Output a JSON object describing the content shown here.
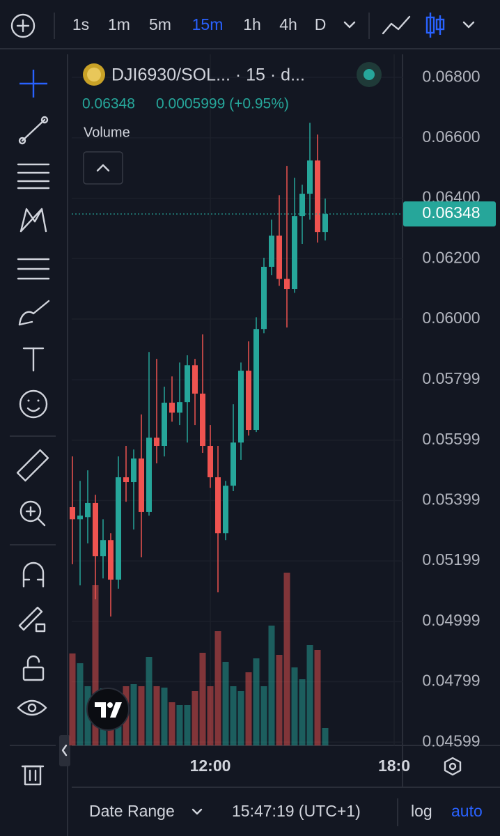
{
  "toolbar": {
    "intervals": [
      "1s",
      "1m",
      "5m",
      "15m",
      "1h",
      "4h",
      "D"
    ],
    "active_interval": 3
  },
  "chart_data": {
    "type": "candlestick",
    "title": "DJI6930/SOL... · 15 · d...",
    "last_price": 0.06348,
    "change": "0.0005999 (+0.95%)",
    "volume_label": "Volume",
    "up_color": "#26a69a",
    "down_color": "#ef5350",
    "open": [
      0.05377,
      0.05337,
      0.05344,
      0.05391,
      0.05215,
      0.05268,
      0.05137,
      0.05476,
      0.0546,
      0.05538,
      0.05361,
      0.05607,
      0.0558,
      0.05723,
      0.0569,
      0.05725,
      0.05847,
      0.05753,
      0.0558,
      0.05476,
      0.05291,
      0.05448,
      0.05591,
      0.05829,
      0.05633,
      0.05967,
      0.06173,
      0.06276,
      0.06133,
      0.06099,
      0.06341,
      0.06415,
      0.06525,
      0.06288
    ],
    "high": [
      0.05545,
      0.05464,
      0.05499,
      0.05418,
      0.05337,
      0.05291,
      0.05545,
      0.0558,
      0.05568,
      0.05684,
      0.05891,
      0.05868,
      0.05776,
      0.0581,
      0.05856,
      0.0588,
      0.05868,
      0.05949,
      0.05649,
      0.0558,
      0.05464,
      0.05718,
      0.05856,
      0.05926,
      0.06006,
      0.06203,
      0.06329,
      0.0641,
      0.06507,
      0.06468,
      0.06445,
      0.0665,
      0.06611,
      0.06399
    ],
    "low": [
      0.05188,
      0.05118,
      0.05257,
      0.05072,
      0.05141,
      0.05015,
      0.05107,
      0.05395,
      0.05303,
      0.05211,
      0.05349,
      0.05522,
      0.05545,
      0.0566,
      0.05649,
      0.05591,
      0.05649,
      0.05557,
      0.05441,
      0.05095,
      0.05268,
      0.0543,
      0.05534,
      0.05614,
      0.05626,
      0.05953,
      0.06145,
      0.0611,
      0.05972,
      0.06087,
      0.06249,
      0.06329,
      0.06253,
      0.0626
    ],
    "close": [
      0.05337,
      0.05349,
      0.05391,
      0.05215,
      0.05268,
      0.05137,
      0.05476,
      0.0546,
      0.05538,
      0.05361,
      0.05607,
      0.0558,
      0.05723,
      0.0569,
      0.05725,
      0.05847,
      0.05753,
      0.0558,
      0.05476,
      0.05291,
      0.05448,
      0.05591,
      0.05829,
      0.05633,
      0.05967,
      0.06173,
      0.06276,
      0.06133,
      0.06099,
      0.06341,
      0.06415,
      0.06525,
      0.06288,
      0.06348
    ],
    "volume": [
      132,
      118,
      85,
      230,
      82,
      70,
      65,
      85,
      88,
      85,
      127,
      85,
      83,
      62,
      58,
      58,
      78,
      133,
      85,
      164,
      120,
      85,
      78,
      105,
      125,
      85,
      172,
      130,
      248,
      112,
      95,
      144,
      137,
      25
    ],
    "ylim": [
      0.04588,
      0.06895
    ],
    "yticks": [
      {
        "value": 0.068,
        "label": "0.06800"
      },
      {
        "value": 0.066,
        "label": "0.06600"
      },
      {
        "value": 0.064,
        "label": "0.06400"
      },
      {
        "value": 0.062,
        "label": "0.06200"
      },
      {
        "value": 0.06,
        "label": "0.06000"
      },
      0.05799,
      0.05599,
      0.05399,
      0.05199,
      0.04999,
      0.04799,
      0.04599
    ],
    "xticks": [
      {
        "value": 18,
        "label": "12:00"
      },
      {
        "value": 42,
        "label": "18:0"
      }
    ],
    "grid": true
  },
  "footer": {
    "date_range": "Date Range",
    "time": "15:47:19 (UTC+1)",
    "log": "log",
    "auto": "auto"
  }
}
